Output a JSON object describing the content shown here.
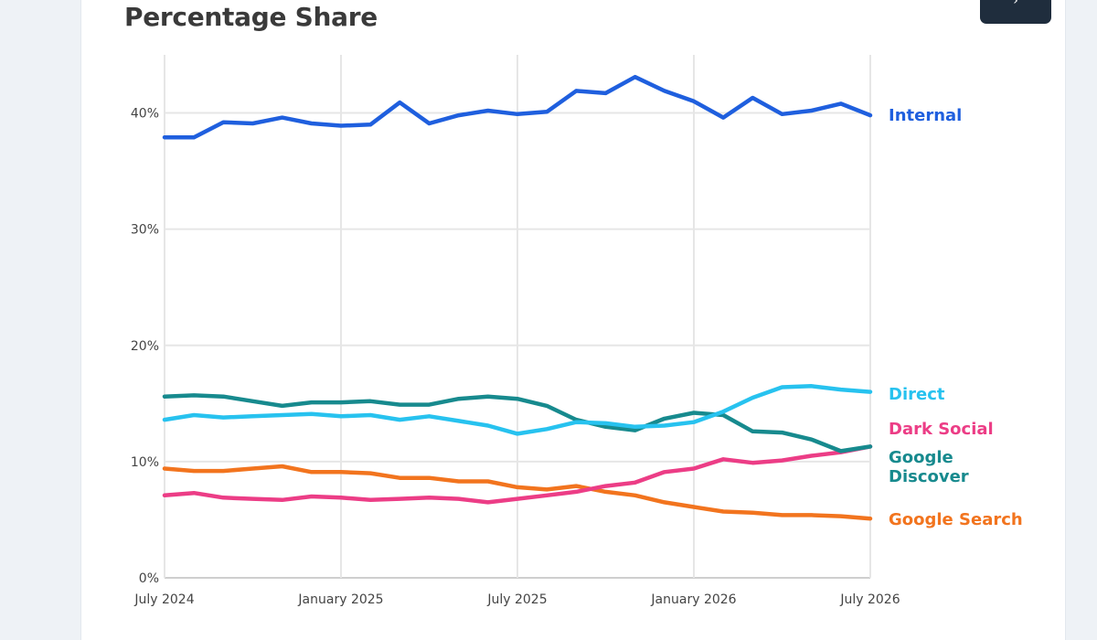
{
  "page": {
    "title": "Percentage Share",
    "corner_button_icon": "chevron-icon"
  },
  "chart_data": {
    "type": "line",
    "title": "Percentage Share",
    "xlabel": "",
    "ylabel": "",
    "ylim": [
      0,
      45
    ],
    "yticks": [
      0,
      10,
      20,
      30,
      40
    ],
    "ytick_labels": [
      "0%",
      "10%",
      "20%",
      "30%",
      "40%"
    ],
    "x_start": "July 2024",
    "x_end": "July 2026",
    "xticks": [
      {
        "label": "July 2024",
        "index": 0
      },
      {
        "label": "January 2025",
        "index": 6
      },
      {
        "label": "July 2025",
        "index": 12
      },
      {
        "label": "January 2026",
        "index": 18
      },
      {
        "label": "July 2026",
        "index": 24
      }
    ],
    "grid": true,
    "legend": "right-end labels",
    "series": [
      {
        "name": "Internal",
        "label_lines": [
          "Internal"
        ],
        "color": "#1f5fde",
        "values": [
          37.9,
          37.9,
          39.2,
          39.1,
          39.6,
          39.1,
          38.9,
          39.0,
          40.9,
          39.1,
          39.8,
          40.2,
          39.9,
          40.1,
          41.9,
          41.7,
          43.1,
          41.9,
          41.0,
          39.6,
          41.3,
          39.9,
          40.2,
          40.8,
          39.8
        ]
      },
      {
        "name": "Direct",
        "label_lines": [
          "Direct"
        ],
        "color": "#27c2ef",
        "values": [
          13.6,
          14.0,
          13.8,
          13.9,
          14.0,
          14.1,
          13.9,
          14.0,
          13.6,
          13.9,
          13.5,
          13.1,
          12.4,
          12.8,
          13.4,
          13.3,
          13.0,
          13.1,
          13.4,
          14.3,
          15.5,
          16.4,
          16.5,
          16.2,
          16.0
        ]
      },
      {
        "name": "Dark Social",
        "label_lines": [
          "Dark Social"
        ],
        "color": "#ec3d86",
        "values": [
          7.1,
          7.3,
          6.9,
          6.8,
          6.7,
          7.0,
          6.9,
          6.7,
          6.8,
          6.9,
          6.8,
          6.5,
          6.8,
          7.1,
          7.4,
          7.9,
          8.2,
          9.1,
          9.4,
          10.2,
          9.9,
          10.1,
          10.5,
          10.8,
          11.3
        ]
      },
      {
        "name": "Google Discover",
        "label_lines": [
          "Google",
          "Discover"
        ],
        "color": "#178a8e",
        "values": [
          15.6,
          15.7,
          15.6,
          15.2,
          14.8,
          15.1,
          15.1,
          15.2,
          14.9,
          14.9,
          15.4,
          15.6,
          15.4,
          14.8,
          13.6,
          13.0,
          12.7,
          13.7,
          14.2,
          14.0,
          12.6,
          12.5,
          11.9,
          10.9,
          11.3
        ]
      },
      {
        "name": "Google Search",
        "label_lines": [
          "Google Search"
        ],
        "color": "#f2741e",
        "values": [
          9.4,
          9.2,
          9.2,
          9.4,
          9.6,
          9.1,
          9.1,
          9.0,
          8.6,
          8.6,
          8.3,
          8.3,
          7.8,
          7.6,
          7.9,
          7.4,
          7.1,
          6.5,
          6.1,
          5.7,
          5.6,
          5.4,
          5.4,
          5.3,
          5.1
        ]
      }
    ]
  }
}
